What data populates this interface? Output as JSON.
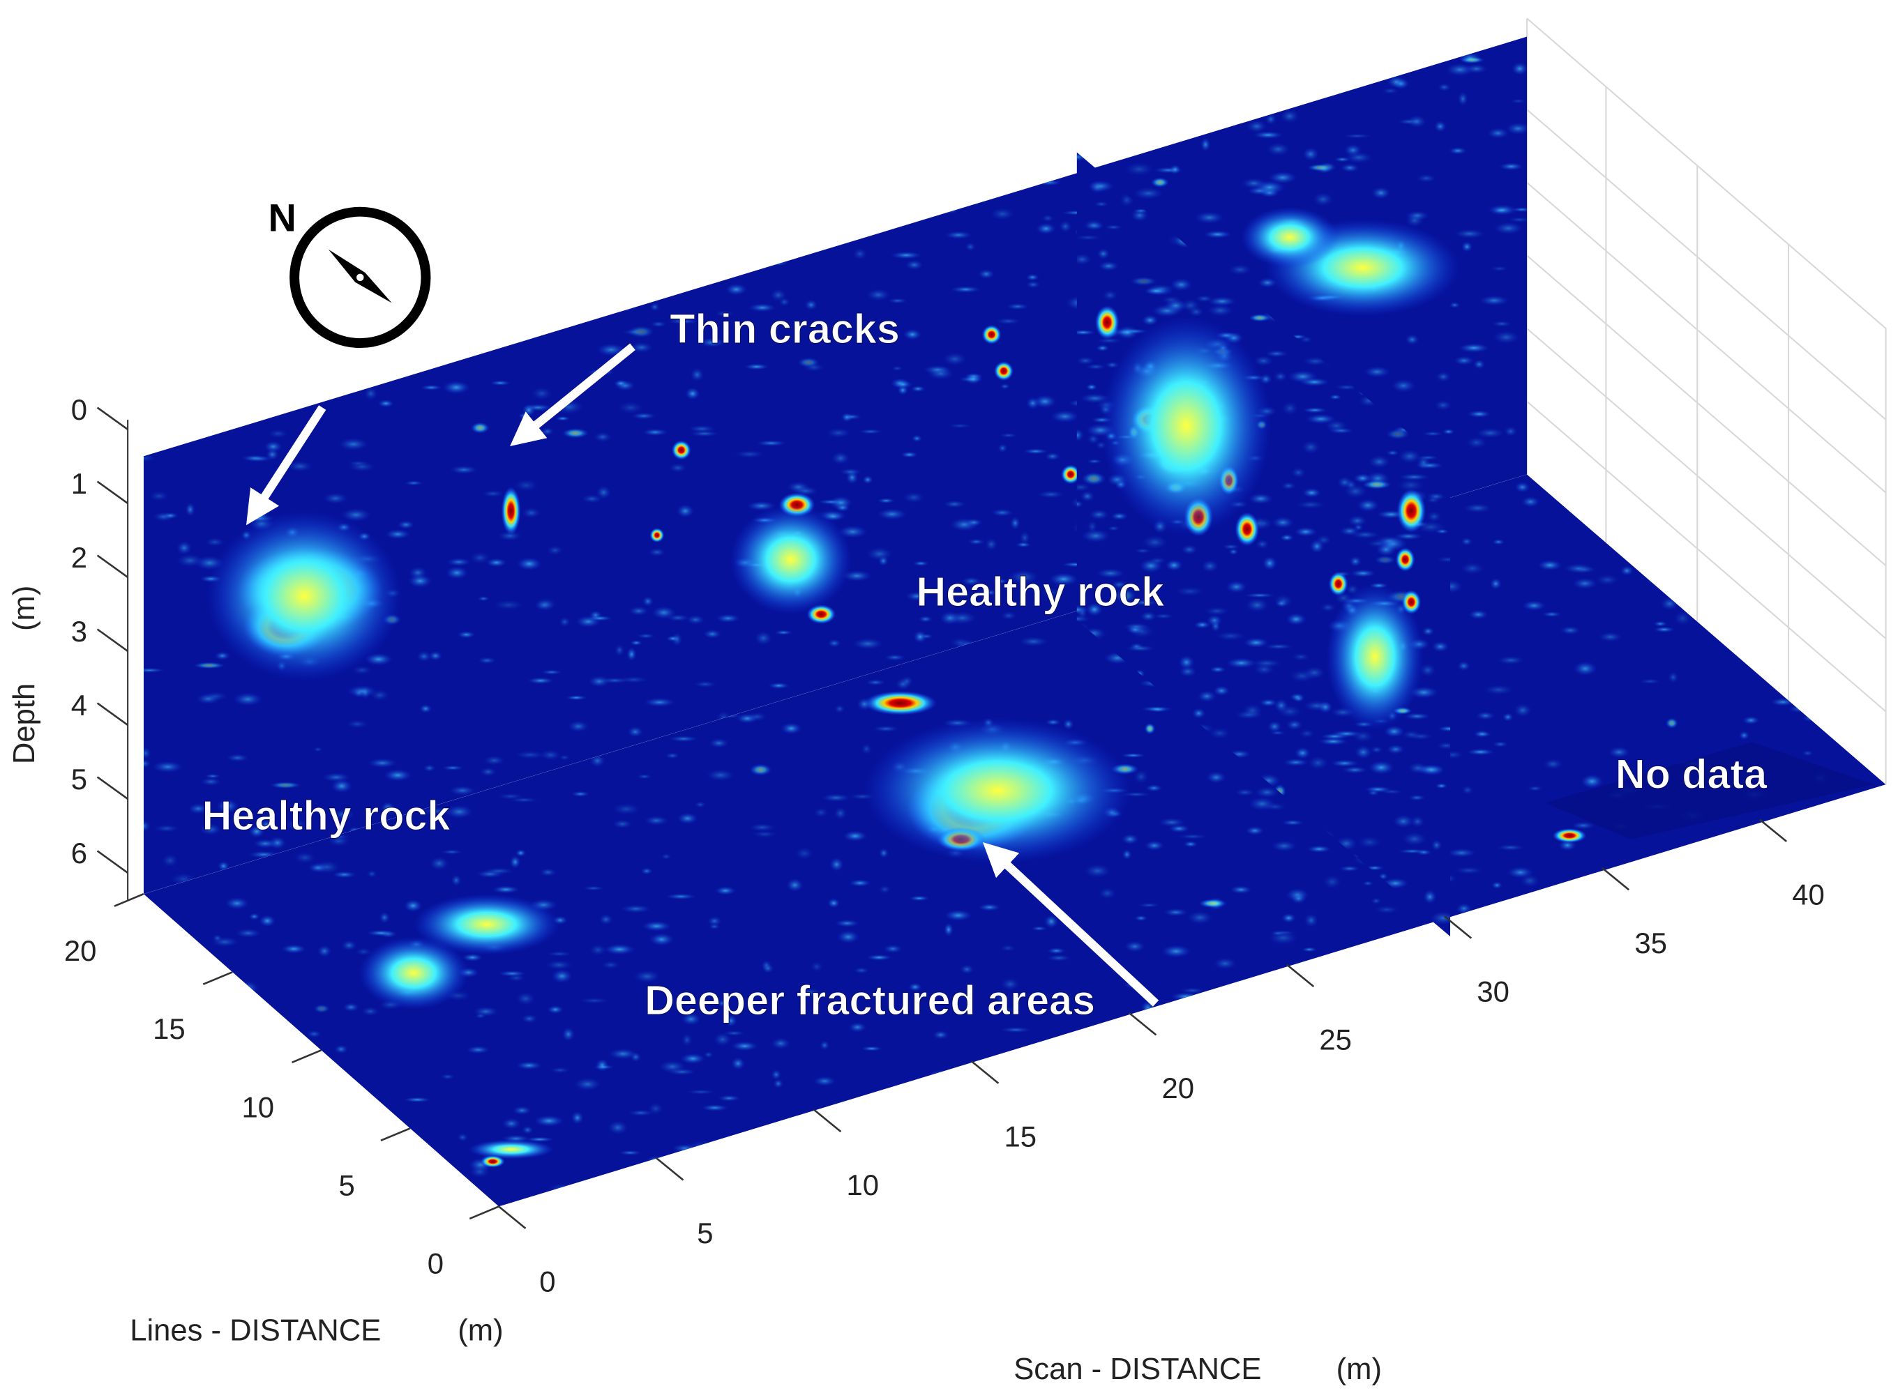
{
  "chart_data": {
    "type": "gpr-slices",
    "xlabel": "Scan - DISTANCE",
    "xunit": "(m)",
    "ylabel": "Lines - DISTANCE",
    "yunit": "(m)",
    "zlabel": "Depth",
    "zunit": "(m)",
    "xlim": [
      0,
      44
    ],
    "xticks": [
      0,
      5,
      10,
      15,
      20,
      25,
      30,
      35,
      40
    ],
    "ylim": [
      0,
      20
    ],
    "yticks": [
      0,
      5,
      10,
      15,
      20
    ],
    "zlim": [
      0,
      6.5
    ],
    "zticks": [
      0,
      1,
      2,
      3,
      4,
      5,
      6
    ],
    "compass": "N",
    "annotations": [
      "Thin cracks",
      "Healthy rock",
      "Healthy rock",
      "No data",
      "Deeper fractured areas"
    ]
  }
}
